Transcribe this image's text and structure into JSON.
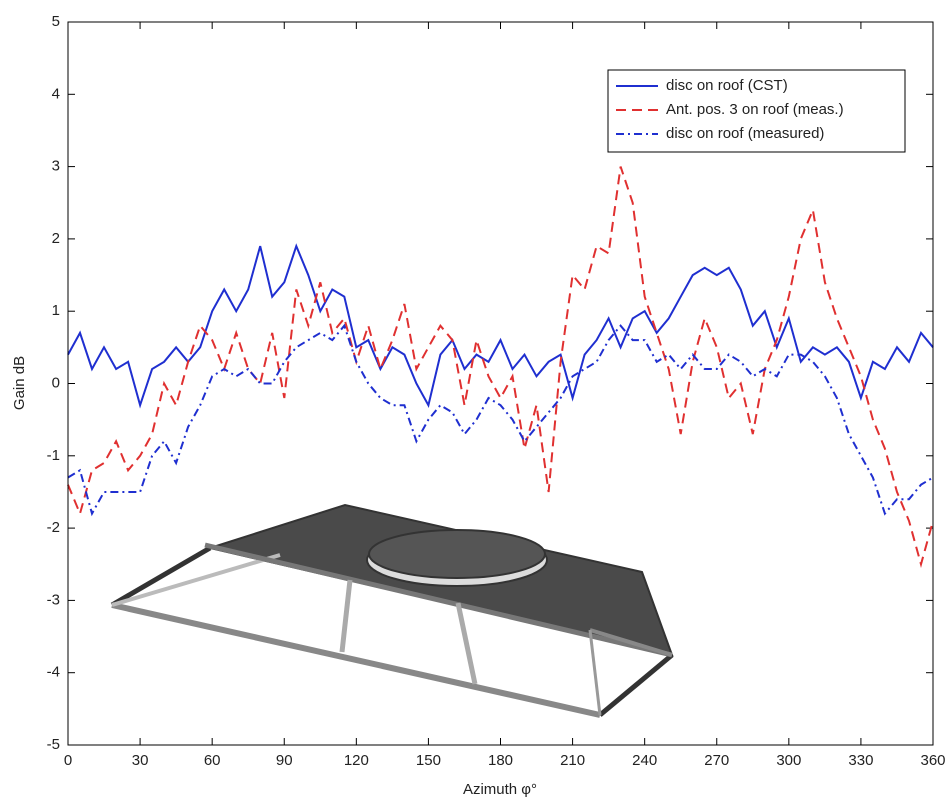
{
  "chart_data": {
    "type": "line",
    "xlabel": "Azimuth φ°",
    "ylabel": "Gain  dB",
    "x": [
      0,
      5,
      10,
      15,
      20,
      25,
      30,
      35,
      40,
      45,
      50,
      55,
      60,
      65,
      70,
      75,
      80,
      85,
      90,
      95,
      100,
      105,
      110,
      115,
      120,
      125,
      130,
      135,
      140,
      145,
      150,
      155,
      160,
      165,
      170,
      175,
      180,
      185,
      190,
      195,
      200,
      205,
      210,
      215,
      220,
      225,
      230,
      235,
      240,
      245,
      250,
      255,
      260,
      265,
      270,
      275,
      280,
      285,
      290,
      295,
      300,
      305,
      310,
      315,
      320,
      325,
      330,
      335,
      340,
      345,
      350,
      355,
      360
    ],
    "series": [
      {
        "name": "disc on roof (CST)",
        "color": "#1f2fd0",
        "style": "solid",
        "values": [
          0.4,
          0.7,
          0.2,
          0.5,
          0.2,
          0.3,
          -0.3,
          0.2,
          0.3,
          0.5,
          0.3,
          0.5,
          1.0,
          1.3,
          1.0,
          1.3,
          1.9,
          1.2,
          1.4,
          1.9,
          1.5,
          1.0,
          1.3,
          1.2,
          0.5,
          0.6,
          0.2,
          0.5,
          0.4,
          0.0,
          -0.3,
          0.4,
          0.6,
          0.2,
          0.4,
          0.3,
          0.6,
          0.2,
          0.4,
          0.1,
          0.3,
          0.4,
          -0.2,
          0.4,
          0.6,
          0.9,
          0.5,
          0.9,
          1.0,
          0.7,
          0.9,
          1.2,
          1.5,
          1.6,
          1.5,
          1.6,
          1.3,
          0.8,
          1.0,
          0.5,
          0.9,
          0.3,
          0.5,
          0.4,
          0.5,
          0.3,
          -0.2,
          0.3,
          0.2,
          0.5,
          0.3,
          0.7,
          0.5
        ]
      },
      {
        "name": "Ant. pos. 3 on roof (meas.)",
        "color": "#e03030",
        "style": "dashed",
        "values": [
          -1.4,
          -1.8,
          -1.2,
          -1.1,
          -0.8,
          -1.2,
          -1.0,
          -0.7,
          0.0,
          -0.3,
          0.3,
          0.8,
          0.6,
          0.2,
          0.7,
          0.2,
          0.0,
          0.7,
          -0.2,
          1.3,
          0.8,
          1.4,
          0.7,
          0.9,
          0.3,
          0.8,
          0.2,
          0.6,
          1.1,
          0.2,
          0.5,
          0.8,
          0.6,
          -0.3,
          0.6,
          0.1,
          -0.2,
          0.1,
          -0.9,
          -0.3,
          -1.5,
          0.3,
          1.5,
          1.3,
          1.9,
          1.8,
          3.0,
          2.5,
          1.2,
          0.7,
          0.2,
          -0.7,
          0.3,
          0.9,
          0.5,
          -0.2,
          0.0,
          -0.7,
          0.2,
          0.6,
          1.2,
          2.0,
          2.4,
          1.4,
          0.9,
          0.5,
          0.1,
          -0.5,
          -0.9,
          -1.5,
          -1.9,
          -2.5,
          -1.9
        ]
      },
      {
        "name": "disc on roof (measured)",
        "color": "#1f2fd0",
        "style": "dashdot",
        "values": [
          -1.3,
          -1.2,
          -1.8,
          -1.5,
          -1.5,
          -1.5,
          -1.5,
          -1.0,
          -0.8,
          -1.1,
          -0.6,
          -0.3,
          0.1,
          0.2,
          0.1,
          0.2,
          0.0,
          0.0,
          0.3,
          0.5,
          0.6,
          0.7,
          0.6,
          0.8,
          0.3,
          0.0,
          -0.2,
          -0.3,
          -0.3,
          -0.8,
          -0.5,
          -0.3,
          -0.4,
          -0.7,
          -0.5,
          -0.2,
          -0.3,
          -0.5,
          -0.8,
          -0.6,
          -0.4,
          -0.2,
          0.1,
          0.2,
          0.3,
          0.6,
          0.8,
          0.6,
          0.6,
          0.3,
          0.4,
          0.2,
          0.4,
          0.2,
          0.2,
          0.4,
          0.3,
          0.1,
          0.2,
          0.1,
          0.4,
          0.4,
          0.3,
          0.1,
          -0.2,
          -0.7,
          -1.0,
          -1.3,
          -1.8,
          -1.6,
          -1.6,
          -1.4,
          -1.3
        ]
      }
    ],
    "xlim": [
      0,
      360
    ],
    "xticks": [
      0,
      30,
      60,
      90,
      120,
      150,
      180,
      210,
      240,
      270,
      300,
      330,
      360
    ],
    "ylim": [
      -5,
      5
    ],
    "yticks": [
      -5,
      -4,
      -3,
      -2,
      -1,
      0,
      1,
      2,
      3,
      4,
      5
    ],
    "legend": "upper right"
  }
}
